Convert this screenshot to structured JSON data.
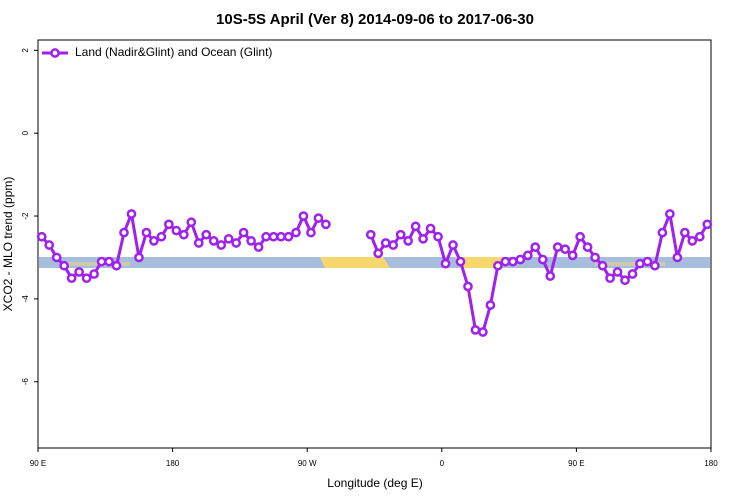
{
  "chart_data": {
    "type": "line",
    "title": "10S-5S April (Ver 8)   2014-09-06 to 2017-06-30",
    "xlabel": "Longitude (deg E)",
    "ylabel": "XCO2 - MLO trend (ppm)",
    "xlim": [
      90,
      540
    ],
    "ylim": [
      -7.6,
      2.25
    ],
    "xticks": [
      {
        "value": 90,
        "label": "90 E"
      },
      {
        "value": 180,
        "label": "180"
      },
      {
        "value": 270,
        "label": "90 W"
      },
      {
        "value": 360,
        "label": "0"
      },
      {
        "value": 450,
        "label": "90 E"
      },
      {
        "value": 540,
        "label": "180"
      }
    ],
    "yticks": [
      -6,
      -4,
      -2,
      0,
      2
    ],
    "legend": "top-left",
    "x": [
      92.5,
      97.5,
      102.5,
      107.5,
      112.5,
      117.5,
      122.5,
      127.5,
      132.5,
      137.5,
      142.5,
      147.5,
      152.5,
      157.5,
      162.5,
      167.5,
      172.5,
      177.5,
      182.5,
      187.5,
      192.5,
      197.5,
      202.5,
      207.5,
      212.5,
      217.5,
      222.5,
      227.5,
      232.5,
      237.5,
      242.5,
      247.5,
      252.5,
      257.5,
      262.5,
      267.5,
      272.5,
      277.5,
      282.5,
      287.5,
      292.5,
      297.5,
      302.5,
      307.5,
      312.5,
      317.5,
      322.5,
      327.5,
      332.5,
      337.5,
      342.5,
      347.5,
      352.5,
      357.5,
      362.5,
      367.5,
      372.5,
      377.5,
      382.5,
      387.5,
      392.5,
      397.5,
      402.5,
      407.5,
      412.5,
      417.5,
      422.5,
      427.5,
      432.5,
      437.5,
      442.5,
      447.5,
      452.5,
      457.5,
      462.5,
      467.5,
      472.5,
      477.5,
      482.5,
      487.5,
      492.5,
      497.5,
      502.5,
      507.5,
      512.5,
      517.5,
      522.5,
      527.5,
      532.5,
      537.5
    ],
    "series": [
      {
        "name": "Land (Nadir&Glint) and Ocean (Glint)",
        "color": "#a020f0",
        "values": [
          -2.5,
          -2.7,
          -3.0,
          -3.2,
          -3.5,
          -3.35,
          -3.5,
          -3.4,
          -3.1,
          -3.1,
          -3.2,
          -2.4,
          -1.95,
          -3.0,
          -2.4,
          -2.6,
          -2.5,
          -2.2,
          -2.35,
          -2.45,
          -2.15,
          -2.65,
          -2.45,
          -2.6,
          -2.7,
          -2.55,
          -2.65,
          -2.4,
          -2.6,
          -2.75,
          -2.5,
          -2.5,
          -2.5,
          -2.5,
          -2.4,
          -2.0,
          -2.4,
          -2.05,
          -2.2,
          null,
          null,
          null,
          null,
          null,
          -2.45,
          -2.9,
          -2.65,
          -2.7,
          -2.45,
          -2.6,
          -2.25,
          -2.55,
          -2.3,
          -2.5,
          -3.15,
          -2.7,
          -3.1,
          -3.7,
          -4.75,
          -4.8,
          -4.15,
          -3.2,
          -3.1,
          -3.1,
          -3.05,
          -2.95,
          -2.75,
          -3.05,
          -3.45,
          -2.75,
          -2.8,
          -2.95,
          -2.5,
          -2.75,
          -3.0,
          -3.2,
          -3.5,
          -3.35,
          -3.55,
          -3.4,
          -3.15,
          -3.1,
          -3.2,
          -2.4,
          -1.95,
          -3.0,
          -2.4,
          -2.6,
          -2.5,
          -2.2
        ]
      }
    ]
  }
}
